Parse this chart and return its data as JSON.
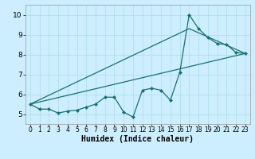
{
  "xlabel": "Humidex (Indice chaleur)",
  "xlim": [
    -0.5,
    23.5
  ],
  "ylim": [
    4.5,
    10.5
  ],
  "bg_color": "#cceeff",
  "line_color": "#1a7070",
  "line1_x": [
    0,
    1,
    2,
    3,
    4,
    5,
    6,
    7,
    8,
    9,
    10,
    11,
    12,
    13,
    14,
    15,
    16,
    17,
    18,
    19,
    20,
    21,
    22,
    23
  ],
  "line1_y": [
    5.5,
    5.25,
    5.25,
    5.05,
    5.15,
    5.2,
    5.35,
    5.5,
    5.85,
    5.85,
    5.1,
    4.85,
    6.2,
    6.3,
    6.2,
    5.7,
    7.1,
    10.0,
    9.3,
    8.85,
    8.55,
    8.5,
    8.1,
    8.05
  ],
  "line2_x": [
    0,
    23
  ],
  "line2_y": [
    5.5,
    8.05
  ],
  "line3_x": [
    0,
    17,
    23
  ],
  "line3_y": [
    5.5,
    9.3,
    8.05
  ],
  "xticks": [
    0,
    1,
    2,
    3,
    4,
    5,
    6,
    7,
    8,
    9,
    10,
    11,
    12,
    13,
    14,
    15,
    16,
    17,
    18,
    19,
    20,
    21,
    22,
    23
  ],
  "yticks": [
    5,
    6,
    7,
    8,
    9,
    10
  ],
  "grid_color": "#aadddd",
  "tick_fontsize_x": 5.5,
  "tick_fontsize_y": 6.5,
  "xlabel_fontsize": 7
}
